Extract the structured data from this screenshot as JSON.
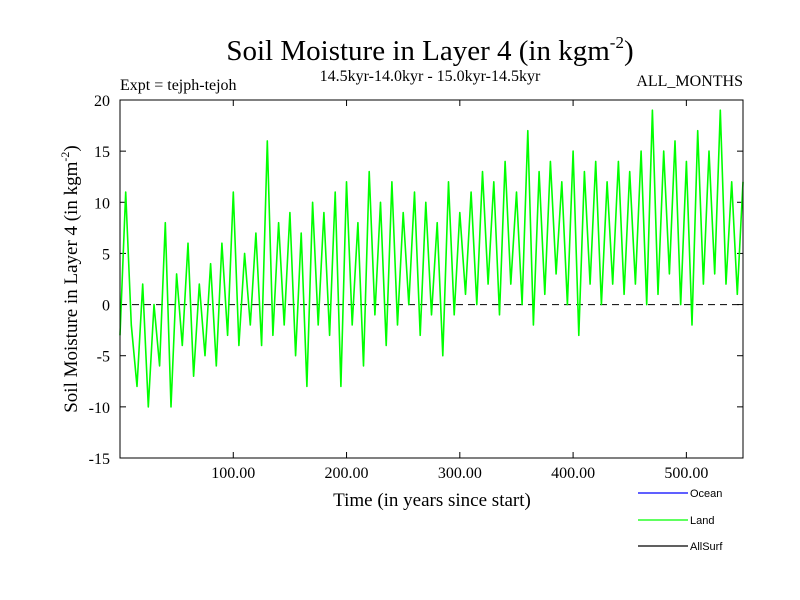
{
  "chart_data": {
    "type": "line",
    "title": "Soil Moisture in Layer 4 (in kgm",
    "title_sup": "-2",
    "title_close": ")",
    "subtitle_left": "Expt = tejph-tejoh",
    "subtitle_center": "14.5kyr-14.0kyr - 15.0kyr-14.5kyr",
    "subtitle_right": "ALL_MONTHS",
    "xlabel": "Time (in years since start)",
    "ylabel": "Soil Moisture in Layer 4 (in kgm",
    "ylabel_sup": "-2",
    "ylabel_close": ")",
    "xlim": [
      0,
      550
    ],
    "ylim": [
      -15,
      20
    ],
    "x_ticks": [
      100,
      200,
      300,
      400,
      500
    ],
    "x_tick_labels": [
      "100.00",
      "200.00",
      "300.00",
      "400.00",
      "500.00"
    ],
    "y_ticks": [
      -15,
      -10,
      -5,
      0,
      5,
      10,
      15,
      20
    ],
    "y_tick_labels": [
      "-15",
      "-10",
      "-5",
      "0",
      "5",
      "10",
      "15",
      "20"
    ],
    "reference_line": 0,
    "legend_placement": "bottom-right, below plot",
    "legend": [
      {
        "name": "Ocean",
        "color": "#0000ff"
      },
      {
        "name": "Land",
        "color": "#00ff00"
      },
      {
        "name": "AllSurf",
        "color": "#000000"
      }
    ],
    "series": [
      {
        "name": "Land",
        "color": "#00ff00",
        "x": [
          0,
          5,
          10,
          15,
          20,
          25,
          30,
          35,
          40,
          45,
          50,
          55,
          60,
          65,
          70,
          75,
          80,
          85,
          90,
          95,
          100,
          105,
          110,
          115,
          120,
          125,
          130,
          135,
          140,
          145,
          150,
          155,
          160,
          165,
          170,
          175,
          180,
          185,
          190,
          195,
          200,
          205,
          210,
          215,
          220,
          225,
          230,
          235,
          240,
          245,
          250,
          255,
          260,
          265,
          270,
          275,
          280,
          285,
          290,
          295,
          300,
          305,
          310,
          315,
          320,
          325,
          330,
          335,
          340,
          345,
          350,
          355,
          360,
          365,
          370,
          375,
          380,
          385,
          390,
          395,
          400,
          405,
          410,
          415,
          420,
          425,
          430,
          435,
          440,
          445,
          450,
          455,
          460,
          465,
          470,
          475,
          480,
          485,
          490,
          495,
          500,
          505,
          510,
          515,
          520,
          525,
          530,
          535,
          540,
          545,
          550
        ],
        "values": [
          -3,
          11,
          -2,
          -8,
          2,
          -10,
          0,
          -6,
          8,
          -10,
          3,
          -4,
          6,
          -7,
          2,
          -5,
          4,
          -6,
          6,
          -3,
          11,
          -4,
          5,
          -2,
          7,
          -4,
          16,
          -3,
          8,
          -2,
          9,
          -5,
          7,
          -8,
          10,
          -2,
          9,
          -3,
          11,
          -8,
          12,
          -2,
          8,
          -6,
          13,
          -1,
          10,
          -4,
          12,
          -2,
          9,
          0,
          11,
          -3,
          10,
          -1,
          8,
          -5,
          12,
          -1,
          9,
          1,
          11,
          0,
          13,
          2,
          12,
          -1,
          14,
          2,
          11,
          0,
          17,
          -2,
          13,
          1,
          14,
          3,
          12,
          0,
          15,
          -3,
          13,
          2,
          14,
          0,
          12,
          2,
          14,
          1,
          13,
          2,
          15,
          0,
          19,
          1,
          15,
          3,
          16,
          0,
          14,
          -2,
          17,
          2,
          15,
          3,
          19,
          2,
          12,
          1,
          12
        ]
      }
    ]
  }
}
